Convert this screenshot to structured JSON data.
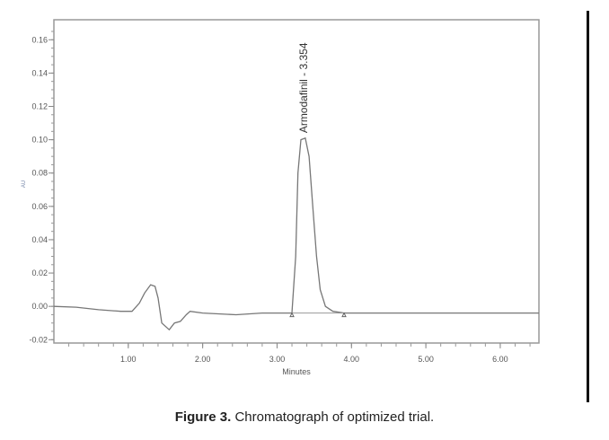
{
  "chart_data": {
    "type": "line",
    "title": "",
    "xlabel": "Minutes",
    "ylabel": "AU",
    "xlim": [
      0,
      6.52
    ],
    "ylim": [
      -0.022,
      0.172
    ],
    "xticks": [
      1.0,
      2.0,
      3.0,
      4.0,
      5.0,
      6.0
    ],
    "xtick_labels": [
      "1.00",
      "2.00",
      "3.00",
      "4.00",
      "5.00",
      "6.00"
    ],
    "yticks": [
      -0.02,
      0.0,
      0.02,
      0.04,
      0.06,
      0.08,
      0.1,
      0.12,
      0.14,
      0.16
    ],
    "ytick_labels": [
      "-0.02",
      "0.00",
      "0.02",
      "0.04",
      "0.06",
      "0.08",
      "0.10",
      "0.12",
      "0.14",
      "0.16"
    ],
    "grid": false,
    "series": [
      {
        "name": "chromatogram",
        "x": [
          0,
          0.3,
          0.6,
          0.9,
          1.05,
          1.15,
          1.22,
          1.3,
          1.36,
          1.4,
          1.45,
          1.55,
          1.62,
          1.7,
          1.78,
          1.83,
          2.0,
          2.45,
          2.8,
          3.2,
          3.25,
          3.28,
          3.32,
          3.38,
          3.43,
          3.48,
          3.53,
          3.58,
          3.65,
          3.75,
          3.9,
          6.52
        ],
        "y": [
          0,
          -0.0005,
          -0.002,
          -0.003,
          -0.003,
          0.002,
          0.008,
          0.013,
          0.012,
          0.005,
          -0.01,
          -0.014,
          -0.01,
          -0.009,
          -0.005,
          -0.003,
          -0.004,
          -0.005,
          -0.004,
          -0.004,
          0.03,
          0.08,
          0.1,
          0.101,
          0.09,
          0.06,
          0.03,
          0.01,
          0.0,
          -0.003,
          -0.004,
          -0.004
        ]
      }
    ],
    "annotations": [
      {
        "text": "Armodafinil - 3.354",
        "x": 3.354
      }
    ],
    "baseline_markers": [
      3.2,
      3.9
    ]
  },
  "caption": {
    "label": "Figure 3.",
    "text": " Chromatograph of optimized trial."
  }
}
